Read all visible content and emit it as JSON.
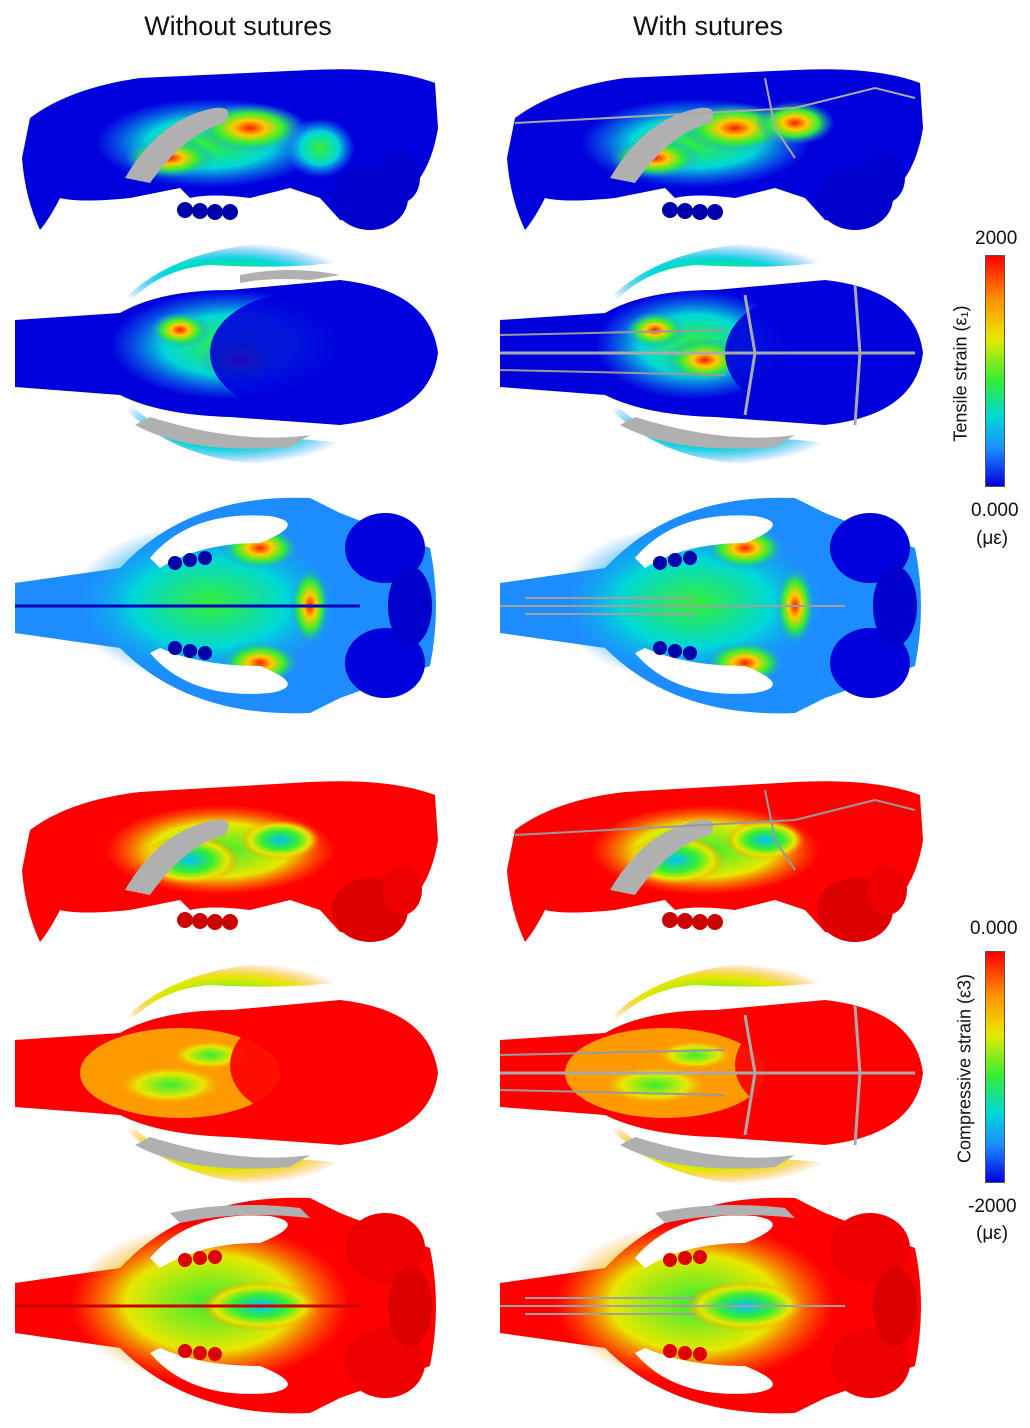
{
  "columns": {
    "left": "Without sutures",
    "right": "With sutures"
  },
  "colorbars": {
    "tensile": {
      "title": "Tensile strain (ε₁)",
      "max_label": "2000",
      "min_label": "0.000",
      "unit": "(με)"
    },
    "compressive": {
      "title": "Compressive strain (ε3)",
      "max_label": "0.000",
      "min_label": "-2000",
      "unit": "(με)"
    }
  },
  "colors": {
    "high": "#ff0000",
    "orange": "#ff8c00",
    "yellow": "#e8e800",
    "green": "#33ee33",
    "cyan": "#00d8d8",
    "light_blue": "#1c8cff",
    "low": "#0000dd",
    "bone_grey": "#b0b0b0"
  }
}
